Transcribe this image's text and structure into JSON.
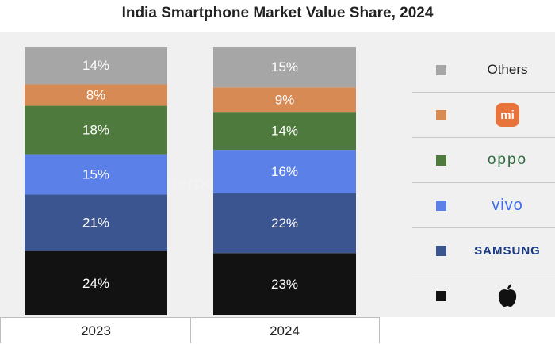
{
  "title": "India Smartphone Market Value Share, 2024",
  "watermark": "Counterpoint",
  "legend": {
    "others_label": "Others",
    "xiaomi_mark": "mi",
    "oppo_label": "oppo",
    "vivo_label": "vivo",
    "samsung_label": "SAMSUNG",
    "apple_icon": "apple-logo-icon"
  },
  "chart_data": {
    "type": "bar",
    "stacked": true,
    "categories": [
      "2023",
      "2024"
    ],
    "ylim": [
      0,
      100
    ],
    "series": [
      {
        "name": "Apple",
        "color": "#121212",
        "values": [
          24,
          23
        ],
        "labels": [
          "24%",
          "23%"
        ]
      },
      {
        "name": "Samsung",
        "color": "#3b5591",
        "values": [
          21,
          22
        ],
        "labels": [
          "21%",
          "22%"
        ]
      },
      {
        "name": "vivo",
        "color": "#5b80e8",
        "values": [
          15,
          16
        ],
        "labels": [
          "15%",
          "16%"
        ]
      },
      {
        "name": "OPPO",
        "color": "#4f7a3e",
        "values": [
          18,
          14
        ],
        "labels": [
          "18%",
          "14%"
        ]
      },
      {
        "name": "Xiaomi",
        "color": "#d88a55",
        "values": [
          8,
          9
        ],
        "labels": [
          "8%",
          "9%"
        ]
      },
      {
        "name": "Others",
        "color": "#a6a6a6",
        "values": [
          14,
          15
        ],
        "labels": [
          "14%",
          "15%"
        ]
      }
    ]
  }
}
